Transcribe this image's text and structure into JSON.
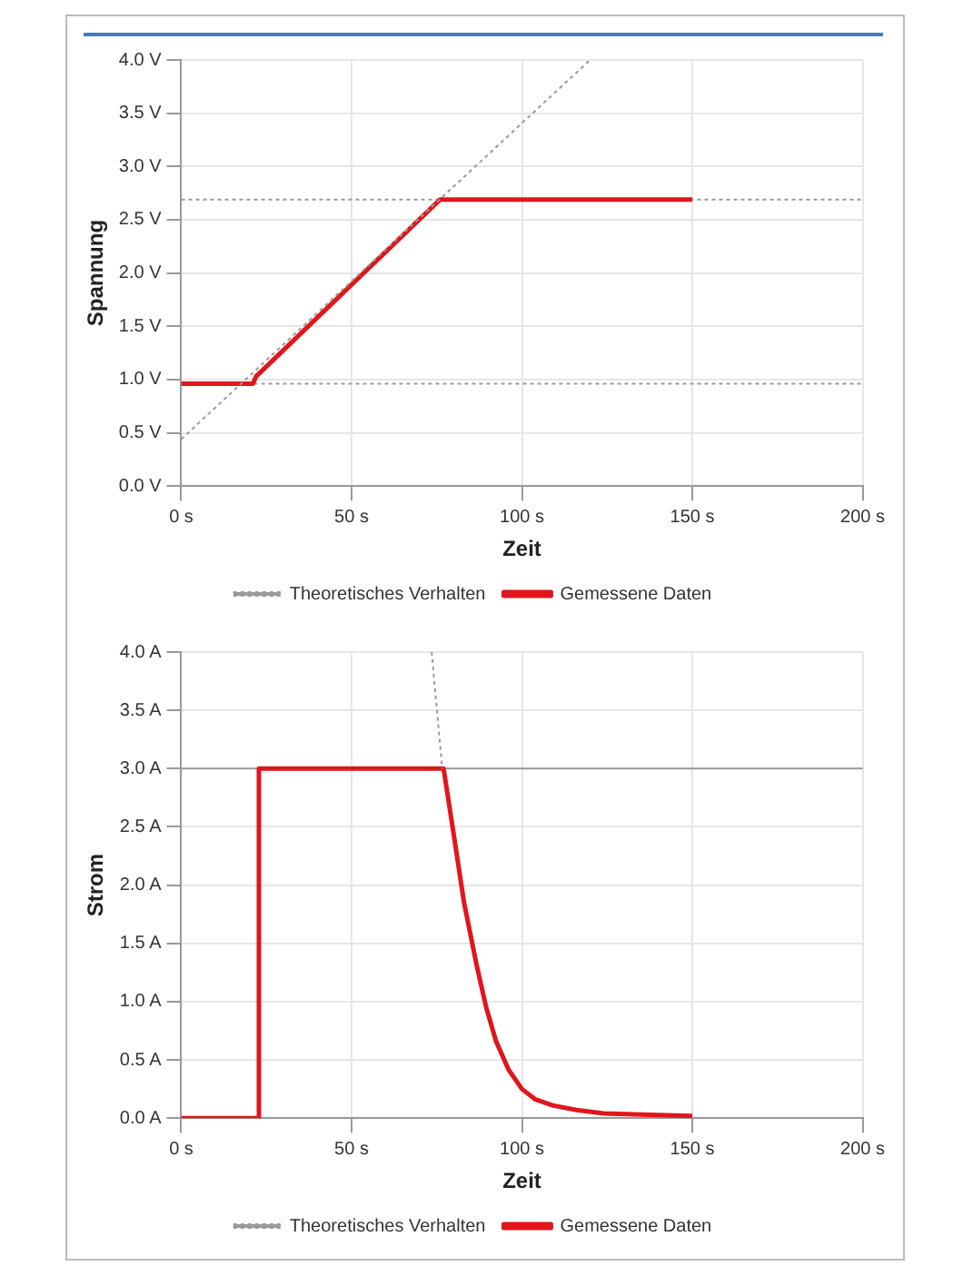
{
  "chart_data": [
    {
      "type": "line",
      "xlabel": "Zeit",
      "ylabel": "Spannung",
      "xlim": [
        0,
        200
      ],
      "xticks": [
        {
          "value": 0,
          "label": "0 s"
        },
        {
          "value": 50,
          "label": "50 s"
        },
        {
          "value": 100,
          "label": "100 s"
        },
        {
          "value": 150,
          "label": "150 s"
        },
        {
          "value": 200,
          "label": "200 s"
        }
      ],
      "ylim": [
        0,
        4
      ],
      "yticks": [
        {
          "value": 0,
          "label": "0.0 V"
        },
        {
          "value": 0.5,
          "label": "0.5 V"
        },
        {
          "value": 1,
          "label": "1.0 V"
        },
        {
          "value": 1.5,
          "label": "1.5 V"
        },
        {
          "value": 2,
          "label": "2.0 V"
        },
        {
          "value": 2.5,
          "label": "2.5 V"
        },
        {
          "value": 3,
          "label": "3.0 V"
        },
        {
          "value": 3.5,
          "label": "3.5 V"
        },
        {
          "value": 4,
          "label": "4.0 V"
        }
      ],
      "grid": true,
      "legend": "bottom",
      "marker": "none",
      "series": [
        {
          "name": "Theoretisches Verhalten",
          "color": "#9a9a9a",
          "line_style": "dotted",
          "x": [
            0,
            120
          ],
          "values": [
            0.44,
            4.0
          ]
        },
        {
          "name": "Gemessene Daten",
          "color": "#e0161c",
          "line_style": "solid",
          "x": [
            0,
            21,
            22,
            76,
            150
          ],
          "values": [
            0.96,
            0.96,
            1.03,
            2.69,
            2.69
          ]
        }
      ],
      "ref_lines": [
        {
          "axis": "y",
          "value": 2.69,
          "color": "#9a9a9a",
          "line_style": "dotted"
        },
        {
          "axis": "y",
          "value": 0.96,
          "color": "#9a9a9a",
          "line_style": "dotted"
        }
      ]
    },
    {
      "type": "line",
      "xlabel": "Zeit",
      "ylabel": "Strom",
      "xlim": [
        0,
        200
      ],
      "xticks": [
        {
          "value": 0,
          "label": "0 s"
        },
        {
          "value": 50,
          "label": "50 s"
        },
        {
          "value": 100,
          "label": "100 s"
        },
        {
          "value": 150,
          "label": "150 s"
        },
        {
          "value": 200,
          "label": "200 s"
        }
      ],
      "ylim": [
        0,
        4
      ],
      "yticks": [
        {
          "value": 0,
          "label": "0.0 A"
        },
        {
          "value": 0.5,
          "label": "0.5 A"
        },
        {
          "value": 1,
          "label": "1.0 A"
        },
        {
          "value": 1.5,
          "label": "1.5 A"
        },
        {
          "value": 2,
          "label": "2.0 A"
        },
        {
          "value": 2.5,
          "label": "2.5 A"
        },
        {
          "value": 3,
          "label": "3.0 A"
        },
        {
          "value": 3.5,
          "label": "3.5 A"
        },
        {
          "value": 4,
          "label": "4.0 A"
        }
      ],
      "grid": true,
      "legend": "bottom",
      "marker": "none",
      "series": [
        {
          "name": "Theoretisches Verhalten",
          "color": "#9a9a9a",
          "line_style": "dotted",
          "x": [
            73.5,
            76.6
          ],
          "values": [
            4.0,
            3.0
          ]
        },
        {
          "name": "Gemessene Daten",
          "color": "#e0161c",
          "line_style": "solid",
          "x": [
            0,
            22.8,
            22.8,
            77,
            80,
            83,
            86.8,
            89.5,
            92.4,
            96,
            100,
            104,
            109,
            116,
            124,
            135,
            150
          ],
          "values": [
            0,
            0,
            3,
            3,
            2.43,
            1.85,
            1.3,
            0.95,
            0.66,
            0.42,
            0.25,
            0.16,
            0.11,
            0.07,
            0.04,
            0.03,
            0.02
          ]
        }
      ],
      "ref_lines": [
        {
          "axis": "y",
          "value": 3,
          "color": "#9a9a9a",
          "line_style": "solid"
        }
      ]
    }
  ]
}
